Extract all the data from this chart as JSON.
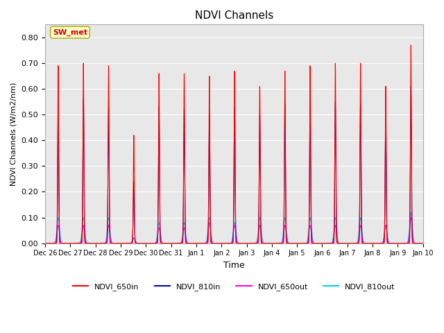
{
  "title": "NDVI Channels",
  "xlabel": "Time",
  "ylabel": "NDVI Channels (W/m2/nm)",
  "ylim": [
    0.0,
    0.85
  ],
  "yticks": [
    0.0,
    0.1,
    0.2,
    0.3,
    0.4,
    0.5,
    0.6,
    0.7,
    0.8
  ],
  "bg_color": "#e8e8e8",
  "annotation_text": "SW_met",
  "annotation_color": "#cc0000",
  "annotation_bg": "#ffffcc",
  "line_colors": {
    "NDVI_650in": "#ff0000",
    "NDVI_810in": "#0000bb",
    "NDVI_650out": "#ff00ff",
    "NDVI_810out": "#00ccff"
  },
  "num_days": 15,
  "peak_heights_650in": [
    0.69,
    0.7,
    0.69,
    0.42,
    0.66,
    0.66,
    0.65,
    0.67,
    0.61,
    0.67,
    0.69,
    0.7,
    0.7,
    0.61,
    0.77
  ],
  "peak_heights_810in": [
    0.55,
    0.56,
    0.53,
    0.24,
    0.53,
    0.52,
    0.5,
    0.53,
    0.5,
    0.54,
    0.55,
    0.55,
    0.54,
    0.5,
    0.61
  ],
  "peak_heights_650out": [
    0.07,
    0.07,
    0.07,
    0.02,
    0.06,
    0.06,
    0.08,
    0.07,
    0.07,
    0.07,
    0.07,
    0.07,
    0.07,
    0.07,
    0.1
  ],
  "peak_heights_810out": [
    0.1,
    0.1,
    0.1,
    0.02,
    0.08,
    0.08,
    0.1,
    0.08,
    0.1,
    0.1,
    0.1,
    0.1,
    0.1,
    0.07,
    0.12
  ],
  "xtick_labels": [
    "Dec 26",
    "Dec 27",
    "Dec 28",
    "Dec 29",
    "Dec 30",
    "Dec 31",
    "Jan 1",
    "Jan 2",
    "Jan 3",
    "Jan 4",
    "Jan 5",
    "Jan 6",
    "Jan 7",
    "Jan 8",
    "Jan 9",
    "Jan 10"
  ],
  "points_per_day": 500
}
